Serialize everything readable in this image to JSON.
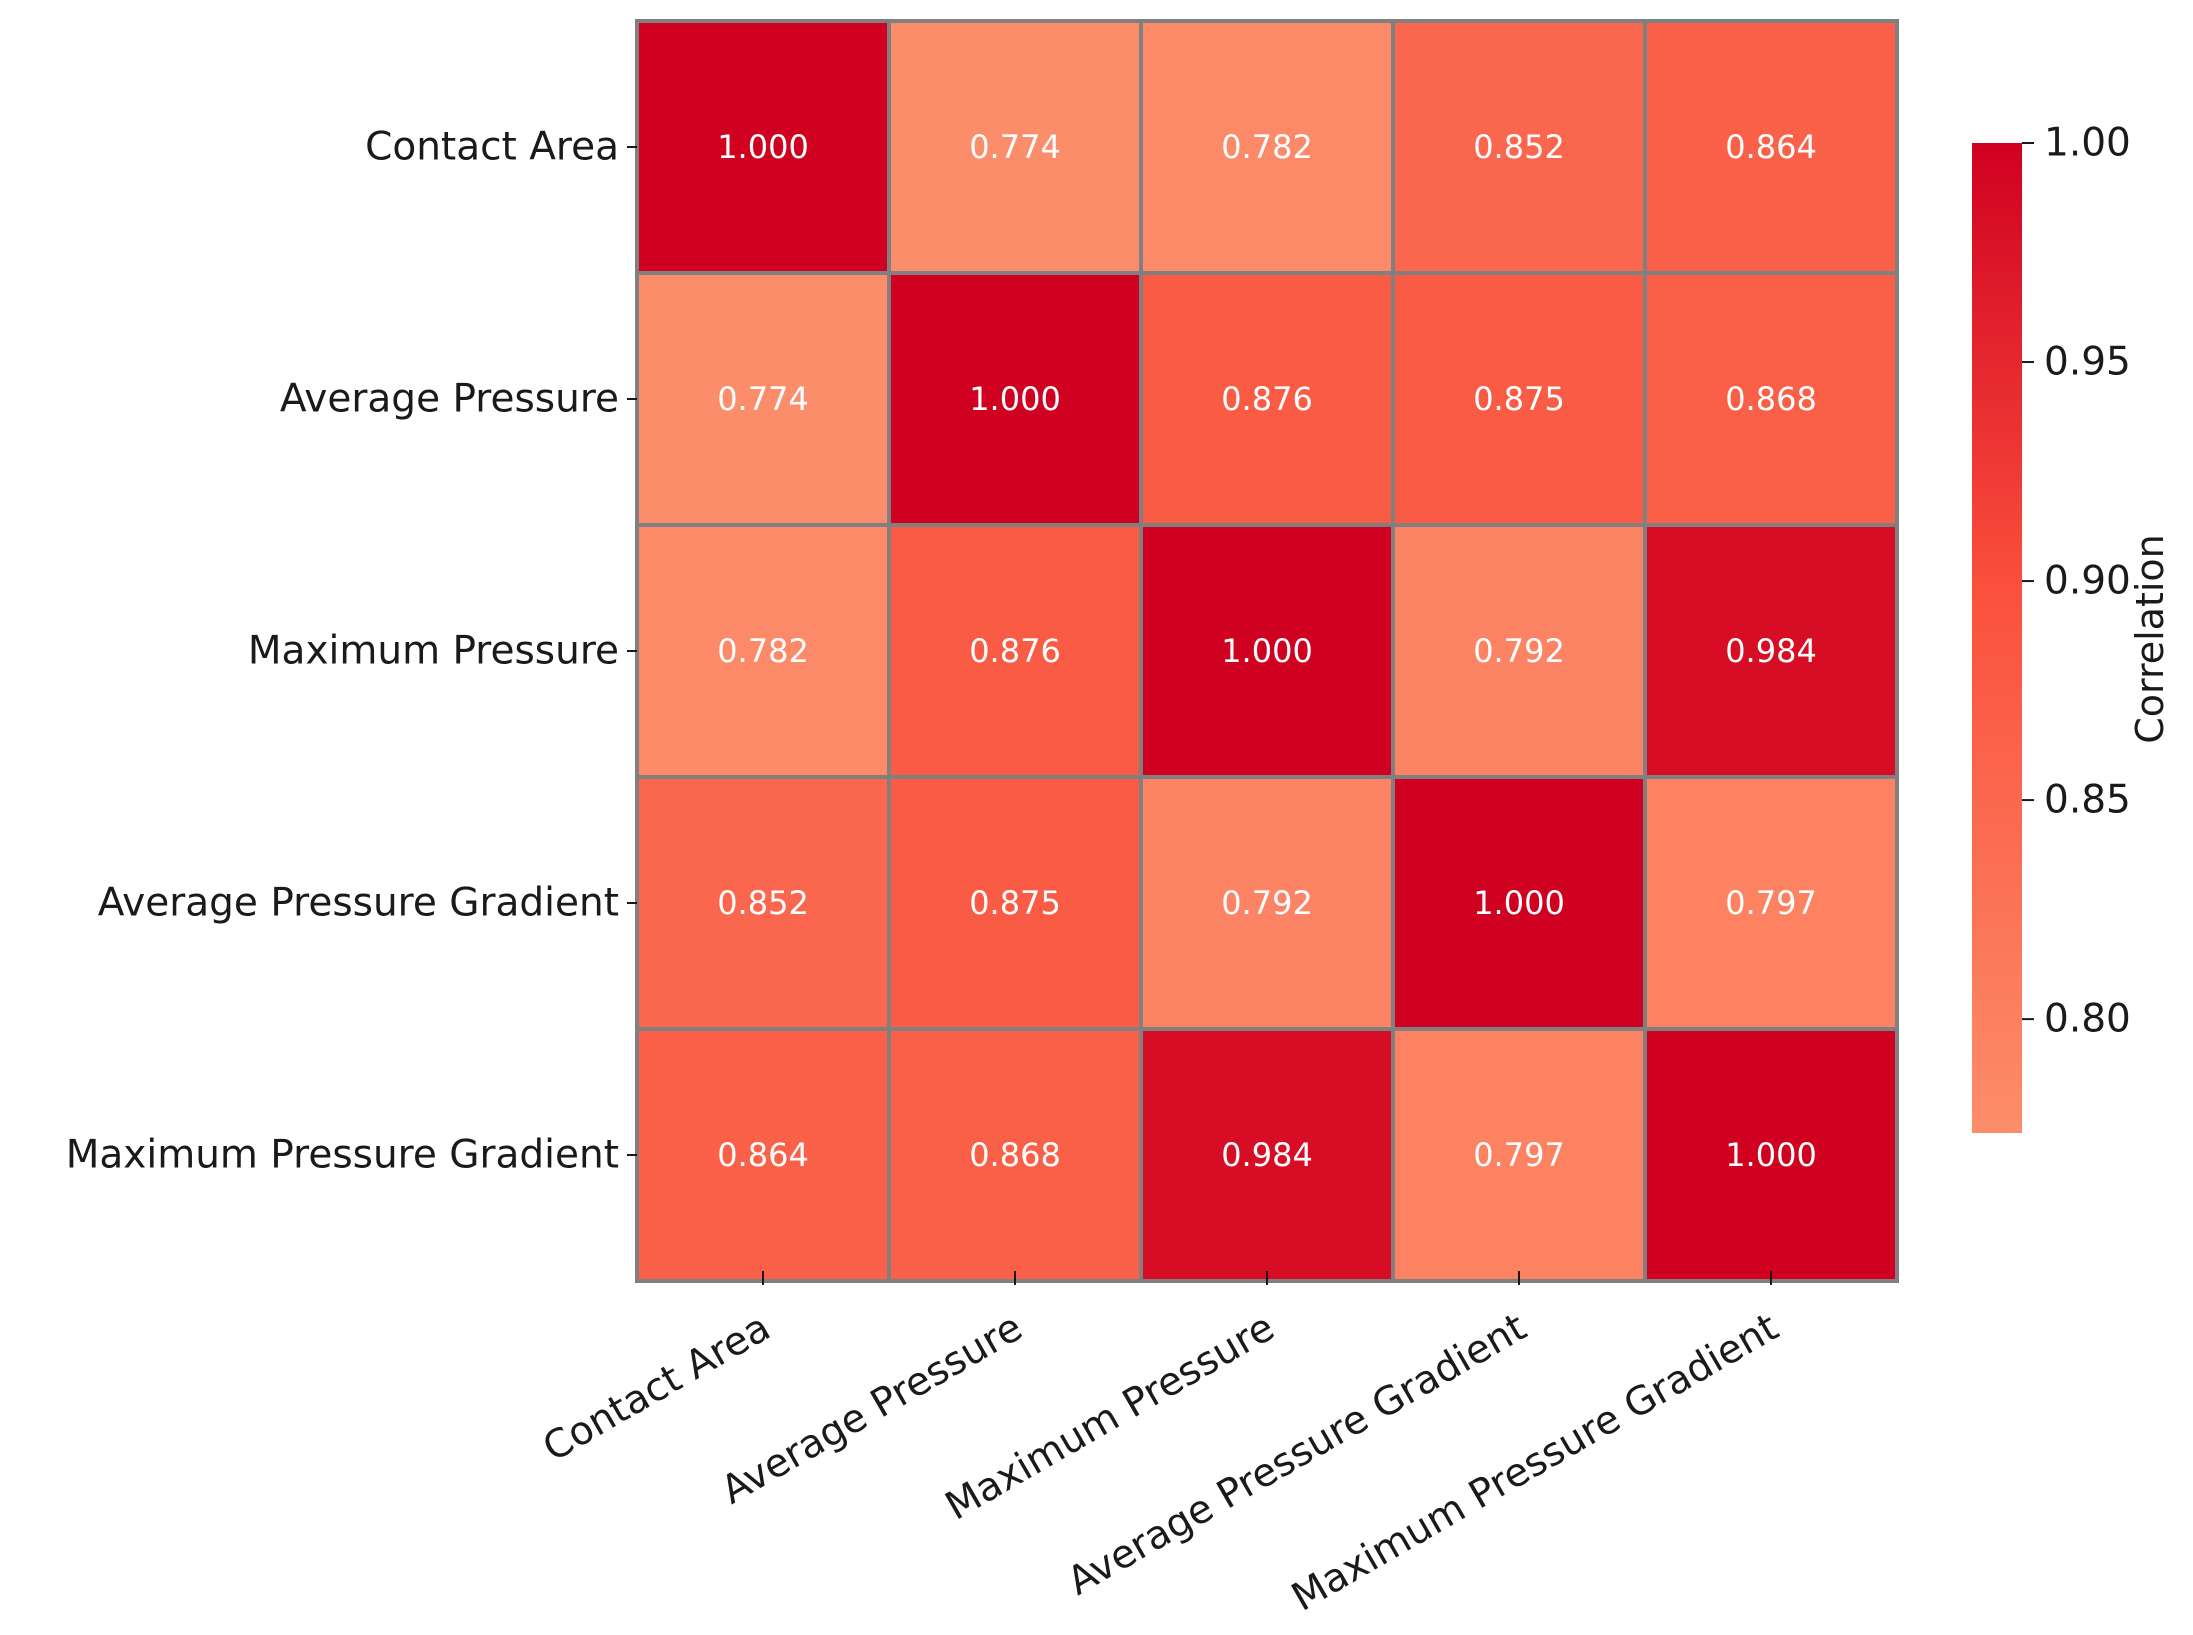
{
  "chart_data": {
    "type": "heatmap",
    "title": "",
    "row_labels": [
      "Contact Area",
      "Average Pressure",
      "Maximum Pressure",
      "Average Pressure Gradient",
      "Maximum Pressure Gradient"
    ],
    "col_labels": [
      "Contact Area",
      "Average Pressure",
      "Maximum Pressure",
      "Average Pressure Gradient",
      "Maximum Pressure Gradient"
    ],
    "values": [
      [
        1.0,
        0.774,
        0.782,
        0.852,
        0.864
      ],
      [
        0.774,
        1.0,
        0.876,
        0.875,
        0.868
      ],
      [
        0.782,
        0.876,
        1.0,
        0.792,
        0.984
      ],
      [
        0.852,
        0.875,
        0.792,
        1.0,
        0.797
      ],
      [
        0.864,
        0.868,
        0.984,
        0.797,
        1.0
      ]
    ],
    "value_labels": [
      [
        "1.000",
        "0.774",
        "0.782",
        "0.852",
        "0.864"
      ],
      [
        "0.774",
        "1.000",
        "0.876",
        "0.875",
        "0.868"
      ],
      [
        "0.782",
        "0.876",
        "1.000",
        "0.792",
        "0.984"
      ],
      [
        "0.852",
        "0.875",
        "0.792",
        "1.000",
        "0.797"
      ],
      [
        "0.864",
        "0.868",
        "0.984",
        "0.797",
        "1.000"
      ]
    ],
    "colorbar": {
      "label": "Correlation",
      "range": [
        0.774,
        1.0
      ],
      "ticks": [
        0.8,
        0.85,
        0.9,
        0.95,
        1.0
      ],
      "tick_labels": [
        "0.80",
        "0.85",
        "0.90",
        "0.95",
        "1.00"
      ],
      "colormap": "Reds",
      "color_low": "#fc8d6b",
      "color_high": "#d00021"
    },
    "colors": {
      "cell_border": "#808080",
      "cell_text": "#ffffff",
      "axis_text": "#1a1a1a"
    }
  }
}
